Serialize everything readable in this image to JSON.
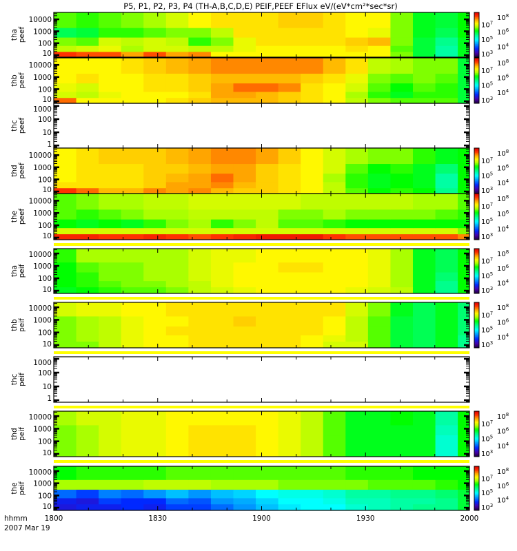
{
  "chart_data": {
    "type": "heatmap",
    "title": "P5, P1, P2, P3, P4 (TH-A,B,C,D,E) PEIF,PEEF EFlux eV/(eV*cm²*sec*sr)",
    "xlabel": "hhmm",
    "date_label": "2007 Mar 19",
    "x_ticks": [
      {
        "min": 0,
        "label": "1800"
      },
      {
        "min": 30,
        "label": "1830"
      },
      {
        "min": 60,
        "label": "1900"
      },
      {
        "min": 90,
        "label": "1930"
      },
      {
        "min": 120,
        "label": "2000"
      }
    ],
    "xlim_minutes": [
      0,
      120
    ],
    "bin_width_min": 6.48,
    "energy_bin_log_edges": [
      0.8,
      1.3,
      1.8,
      2.5,
      3.3,
      4.6
    ],
    "colorbar": {
      "base": "10",
      "exponents": [
        "3",
        "4",
        "5",
        "6",
        "7",
        "8"
      ],
      "zlim_log": [
        3,
        8
      ],
      "scale": "rainbow"
    },
    "value_units": "log10 EFlux eV/(eV*cm2*sec*sr)",
    "panels": [
      {
        "probe": "tha",
        "product": "peef",
        "ylim_log": [
          0.83,
          4.58
        ],
        "ytick_labels": [
          "10",
          "100",
          "1000",
          "10000"
        ],
        "colorbar": true,
        "values": [
          [
            7.6,
            7.5,
            7.5,
            7.2,
            7.5,
            7.2,
            7.3,
            6.8,
            6.8,
            6.8,
            6.8,
            6.8,
            6.8,
            6.8,
            6.8,
            6.3,
            5.8,
            5.4,
            5.9
          ],
          [
            6.5,
            6.6,
            6.7,
            6.4,
            6.6,
            6.6,
            6.5,
            6.5,
            6.7,
            6.8,
            6.8,
            6.8,
            6.8,
            6.9,
            6.8,
            6.2,
            5.8,
            5.4,
            5.9
          ],
          [
            6.3,
            6.2,
            6.6,
            6.5,
            6.6,
            6.5,
            6.1,
            6.3,
            6.7,
            6.9,
            6.9,
            6.9,
            6.9,
            7.0,
            7.1,
            6.3,
            5.8,
            5.5,
            5.9
          ],
          [
            5.7,
            5.8,
            6.1,
            6.1,
            6.2,
            6.3,
            6.3,
            6.5,
            6.9,
            6.9,
            6.9,
            6.9,
            6.9,
            6.8,
            6.7,
            6.3,
            5.9,
            5.7,
            6.0
          ],
          [
            6.2,
            6.1,
            6.2,
            6.3,
            6.4,
            6.6,
            6.8,
            6.9,
            6.9,
            6.9,
            7.0,
            7.0,
            6.9,
            6.8,
            6.8,
            6.3,
            5.9,
            5.8,
            6.0
          ]
        ]
      },
      {
        "probe": "thb",
        "product": "peef",
        "ylim_log": [
          0.83,
          4.58
        ],
        "ytick_labels": [
          "10",
          "100",
          "1000",
          "10000"
        ],
        "colorbar": true,
        "values": [
          [
            7.4,
            6.8,
            6.8,
            6.8,
            6.8,
            6.9,
            7.0,
            7.1,
            7.1,
            7.1,
            7.0,
            6.9,
            6.8,
            6.5,
            6.3,
            6.2,
            6.2,
            6.2,
            5.8
          ],
          [
            6.6,
            6.5,
            6.7,
            6.8,
            6.8,
            6.8,
            6.9,
            7.2,
            7.2,
            7.1,
            7.0,
            6.9,
            6.8,
            6.4,
            6.1,
            5.9,
            6.1,
            6.1,
            5.8
          ],
          [
            6.7,
            6.6,
            6.8,
            6.8,
            6.9,
            6.9,
            7.0,
            7.2,
            7.4,
            7.4,
            7.3,
            6.9,
            6.8,
            6.6,
            6.2,
            6.0,
            6.2,
            6.1,
            5.8
          ],
          [
            6.8,
            6.9,
            6.8,
            6.8,
            6.9,
            6.9,
            7.0,
            7.1,
            7.1,
            7.1,
            7.1,
            7.0,
            6.9,
            6.7,
            6.3,
            6.2,
            6.3,
            6.2,
            5.8
          ],
          [
            6.8,
            6.8,
            6.8,
            6.9,
            7.0,
            7.1,
            7.2,
            7.3,
            7.3,
            7.3,
            7.3,
            7.3,
            7.1,
            6.9,
            6.5,
            6.4,
            6.3,
            6.3,
            5.8
          ]
        ]
      },
      {
        "probe": "thc",
        "product": "peef",
        "ylim_log": [
          -0.2,
          3.2
        ],
        "ytick_labels": [
          "1",
          "10",
          "100",
          "1000"
        ],
        "colorbar": false,
        "values": null
      },
      {
        "probe": "thd",
        "product": "peef",
        "ylim_log": [
          0.83,
          4.58
        ],
        "ytick_labels": [
          "10",
          "100",
          "1000",
          "10000"
        ],
        "colorbar": true,
        "values": [
          [
            7.6,
            7.4,
            7.1,
            7.1,
            7.3,
            7.2,
            7.3,
            7.1,
            7.0,
            7.0,
            6.9,
            6.8,
            6.5,
            6.2,
            6.0,
            6.1,
            6.0,
            5.5,
            6.0
          ],
          [
            6.9,
            6.9,
            6.9,
            6.9,
            7.0,
            7.2,
            7.2,
            7.3,
            7.1,
            7.0,
            6.9,
            6.8,
            6.5,
            6.1,
            5.9,
            6.0,
            5.9,
            5.4,
            6.0
          ],
          [
            6.8,
            6.9,
            6.9,
            6.9,
            7.0,
            7.1,
            7.2,
            7.4,
            7.2,
            7.0,
            6.9,
            6.8,
            6.4,
            6.1,
            5.9,
            6.0,
            5.9,
            5.4,
            6.0
          ],
          [
            6.8,
            6.9,
            6.9,
            6.9,
            7.0,
            7.0,
            7.1,
            7.2,
            7.2,
            7.0,
            6.9,
            6.8,
            6.6,
            6.2,
            6.0,
            6.1,
            5.9,
            5.6,
            6.0
          ],
          [
            6.8,
            6.9,
            7.0,
            7.0,
            7.0,
            7.1,
            7.2,
            7.3,
            7.3,
            7.2,
            7.0,
            6.8,
            6.6,
            6.4,
            6.3,
            6.3,
            6.1,
            5.9,
            6.0
          ]
        ]
      },
      {
        "probe": "the",
        "product": "peef",
        "ylim_log": [
          0.83,
          4.58
        ],
        "ytick_labels": [
          "10",
          "100",
          "1000",
          "10000"
        ],
        "colorbar": true,
        "values": [
          [
            7.7,
            7.7,
            7.6,
            7.6,
            7.7,
            7.6,
            7.5,
            7.6,
            7.7,
            7.8,
            7.8,
            7.8,
            7.6,
            7.5,
            7.5,
            7.5,
            7.5,
            7.5,
            7.3
          ],
          [
            6.6,
            6.6,
            6.6,
            6.6,
            6.6,
            6.6,
            6.6,
            6.6,
            6.6,
            6.6,
            6.6,
            6.6,
            6.6,
            6.6,
            6.6,
            6.6,
            6.6,
            6.6,
            6.3
          ],
          [
            6.0,
            5.9,
            6.0,
            5.9,
            6.1,
            6.3,
            6.4,
            6.1,
            6.3,
            6.5,
            6.2,
            6.2,
            6.1,
            6.0,
            6.0,
            6.0,
            6.0,
            6.0,
            6.0
          ],
          [
            6.2,
            6.1,
            6.2,
            6.3,
            6.4,
            6.4,
            6.5,
            6.5,
            6.5,
            6.5,
            6.3,
            6.3,
            6.4,
            6.3,
            6.3,
            6.3,
            6.3,
            6.2,
            6.1
          ],
          [
            6.2,
            6.3,
            6.4,
            6.4,
            6.5,
            6.5,
            6.6,
            6.6,
            6.6,
            6.6,
            6.6,
            6.5,
            6.5,
            6.5,
            6.5,
            6.5,
            6.4,
            6.4,
            6.2
          ]
        ]
      },
      {
        "probe": "tha",
        "product": "peif",
        "ylim_log": [
          0.78,
          4.39
        ],
        "ytick_labels": [
          "10",
          "100",
          "1000",
          "10000"
        ],
        "colorbar": true,
        "values": [
          [
            5.9,
            6.0,
            6.1,
            6.2,
            6.2,
            6.3,
            6.5,
            6.6,
            6.7,
            6.8,
            6.8,
            6.8,
            6.8,
            6.7,
            6.6,
            6.5,
            5.9,
            5.5,
            6.0
          ],
          [
            6.0,
            6.1,
            6.2,
            6.3,
            6.3,
            6.4,
            6.5,
            6.7,
            6.8,
            6.8,
            6.8,
            6.8,
            6.8,
            6.8,
            6.7,
            6.4,
            5.9,
            5.5,
            6.0
          ],
          [
            6.0,
            6.1,
            6.3,
            6.3,
            6.4,
            6.4,
            6.6,
            6.7,
            6.8,
            6.8,
            6.8,
            6.8,
            6.8,
            6.8,
            6.7,
            6.4,
            5.9,
            5.6,
            6.0
          ],
          [
            6.0,
            6.2,
            6.3,
            6.3,
            6.4,
            6.4,
            6.6,
            6.7,
            6.8,
            6.8,
            6.9,
            6.9,
            6.8,
            6.8,
            6.7,
            6.4,
            5.9,
            5.7,
            6.0
          ],
          [
            6.1,
            6.4,
            6.4,
            6.4,
            6.4,
            6.4,
            6.6,
            6.7,
            6.7,
            6.8,
            6.8,
            6.8,
            6.8,
            6.8,
            6.7,
            6.4,
            5.9,
            5.7,
            6.0
          ]
        ]
      },
      {
        "probe": "thb",
        "product": "peif",
        "ylim_log": [
          0.78,
          4.39
        ],
        "ytick_labels": [
          "10",
          "100",
          "1000",
          "10000"
        ],
        "colorbar": true,
        "values": [
          [
            6.3,
            6.3,
            6.5,
            6.7,
            6.8,
            6.8,
            6.9,
            6.9,
            6.9,
            6.9,
            6.9,
            6.8,
            6.6,
            6.6,
            6.2,
            5.8,
            5.7,
            5.9,
            5.5
          ],
          [
            6.3,
            6.4,
            6.5,
            6.7,
            6.8,
            6.8,
            6.9,
            6.9,
            6.9,
            6.9,
            6.9,
            6.8,
            6.7,
            6.5,
            6.2,
            5.8,
            5.7,
            5.9,
            5.5
          ],
          [
            6.3,
            6.4,
            6.5,
            6.7,
            6.8,
            6.9,
            6.9,
            6.9,
            6.9,
            6.9,
            6.9,
            6.9,
            6.8,
            6.5,
            6.2,
            5.8,
            5.7,
            5.9,
            5.6
          ],
          [
            6.3,
            6.4,
            6.5,
            6.7,
            6.8,
            6.8,
            6.9,
            6.9,
            7.0,
            6.9,
            6.9,
            6.9,
            6.8,
            6.5,
            6.2,
            5.8,
            5.7,
            5.9,
            5.6
          ],
          [
            6.6,
            6.7,
            6.7,
            6.8,
            6.8,
            6.9,
            6.9,
            6.9,
            6.9,
            6.9,
            6.9,
            6.9,
            6.9,
            6.6,
            6.3,
            5.9,
            5.7,
            5.9,
            5.6
          ]
        ]
      },
      {
        "probe": "thc",
        "product": "peif",
        "ylim_log": [
          -0.15,
          3.15
        ],
        "ytick_labels": [
          "1",
          "10",
          "100",
          "1000"
        ],
        "colorbar": false,
        "values": null
      },
      {
        "probe": "thd",
        "product": "peif",
        "ylim_log": [
          0.78,
          4.39
        ],
        "ytick_labels": [
          "10",
          "100",
          "1000",
          "10000"
        ],
        "colorbar": true,
        "values": [
          [
            6.3,
            6.4,
            6.6,
            6.7,
            6.7,
            6.8,
            6.9,
            6.9,
            6.9,
            6.8,
            6.7,
            6.5,
            6.2,
            5.9,
            5.9,
            5.9,
            5.9,
            5.2,
            6.0
          ],
          [
            6.3,
            6.4,
            6.6,
            6.7,
            6.7,
            6.8,
            6.9,
            6.9,
            6.9,
            6.8,
            6.7,
            6.5,
            6.2,
            5.9,
            5.9,
            5.9,
            5.9,
            5.2,
            6.0
          ],
          [
            6.3,
            6.4,
            6.6,
            6.7,
            6.7,
            6.8,
            6.9,
            6.9,
            6.9,
            6.8,
            6.7,
            6.5,
            6.2,
            5.9,
            5.9,
            5.9,
            5.9,
            5.2,
            6.0
          ],
          [
            6.3,
            6.4,
            6.6,
            6.7,
            6.7,
            6.8,
            6.9,
            6.9,
            6.9,
            6.8,
            6.7,
            6.5,
            6.2,
            5.9,
            5.9,
            5.9,
            5.9,
            5.3,
            6.0
          ],
          [
            6.4,
            6.6,
            6.6,
            6.7,
            6.7,
            6.8,
            6.8,
            6.8,
            6.8,
            6.8,
            6.7,
            6.5,
            6.2,
            5.9,
            5.9,
            6.0,
            5.9,
            5.4,
            6.0
          ]
        ]
      },
      {
        "probe": "the",
        "product": "peif",
        "ylim_log": [
          0.78,
          4.39
        ],
        "ytick_labels": [
          "10",
          "100",
          "1000",
          "10000"
        ],
        "colorbar": true,
        "values": [
          [
            3.8,
            3.9,
            3.9,
            4.0,
            3.9,
            4.1,
            4.1,
            4.3,
            4.5,
            4.7,
            4.9,
            5.0,
            5.0,
            5.2,
            5.3,
            5.4,
            5.5,
            5.5,
            5.8
          ],
          [
            3.9,
            3.8,
            4.1,
            4.0,
            4.0,
            4.3,
            4.2,
            4.5,
            4.6,
            4.8,
            5.0,
            5.0,
            5.1,
            5.3,
            5.3,
            5.4,
            5.4,
            5.5,
            5.8
          ],
          [
            4.3,
            4.1,
            4.4,
            4.3,
            4.5,
            4.7,
            4.5,
            4.7,
            4.8,
            5.0,
            5.1,
            5.1,
            5.2,
            5.4,
            5.4,
            5.5,
            5.5,
            5.6,
            5.8
          ],
          [
            6.4,
            6.4,
            6.4,
            6.4,
            6.5,
            6.5,
            6.5,
            6.4,
            6.4,
            6.4,
            6.3,
            6.3,
            6.3,
            6.3,
            6.2,
            6.2,
            6.2,
            6.1,
            6.0
          ],
          [
            6.0,
            6.1,
            6.1,
            6.1,
            6.1,
            6.2,
            6.2,
            6.2,
            6.2,
            6.2,
            6.2,
            6.2,
            6.2,
            6.1,
            6.1,
            6.1,
            6.0,
            6.0,
            6.0
          ]
        ]
      }
    ]
  }
}
